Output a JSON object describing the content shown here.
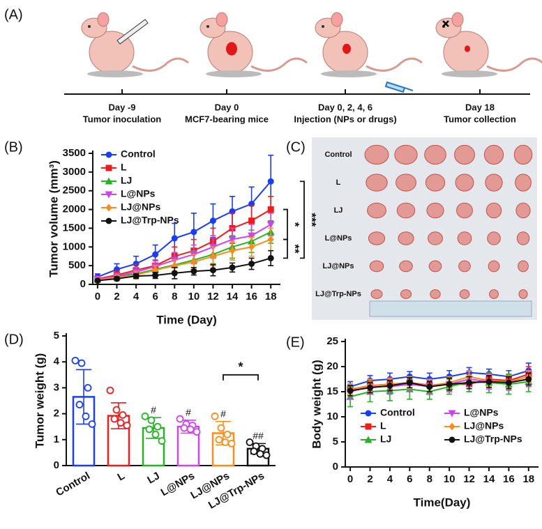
{
  "panels": [
    "(A)",
    "(B)",
    "(C)",
    "(D)",
    "(E)"
  ],
  "timeline": [
    {
      "day": "Day -9",
      "event": "Tumor inoculation"
    },
    {
      "day": "Day 0",
      "event": "MCF7-bearing mice"
    },
    {
      "day": "Day 0, 2, 4, 6",
      "event": "Injection (NPs or drugs)"
    },
    {
      "day": "Day 18",
      "event": "Tumor collection"
    }
  ],
  "photo": {
    "rows": [
      "Control",
      "L",
      "LJ",
      "L@NPs",
      "LJ@NPs",
      "LJ@Trp-NPs"
    ]
  },
  "chart_data": [
    {
      "type": "line",
      "x_label": "Time (Day)",
      "y_label": "Tumor volume (mm³)",
      "x": [
        0,
        2,
        4,
        6,
        8,
        10,
        12,
        14,
        16,
        18
      ],
      "xlim": [
        -0.5,
        19
      ],
      "xticks": [
        0,
        2,
        4,
        6,
        8,
        10,
        12,
        14,
        16,
        18
      ],
      "ylim": [
        0,
        3500
      ],
      "yticks": [
        0,
        500,
        1000,
        1500,
        2000,
        2500,
        3000,
        3500
      ],
      "legend": "upper left",
      "legend_columns": 1,
      "series": [
        {
          "name": "Control",
          "color": "#1a3cff",
          "marker": "circle",
          "values": [
            200,
            400,
            550,
            800,
            1230,
            1400,
            1700,
            1950,
            2150,
            2750
          ],
          "errors": [
            80,
            150,
            200,
            250,
            400,
            500,
            450,
            400,
            450,
            700
          ]
        },
        {
          "name": "L",
          "color": "#ee1c1c",
          "marker": "square",
          "values": [
            150,
            250,
            380,
            500,
            750,
            900,
            1150,
            1500,
            1700,
            2000
          ],
          "errors": [
            50,
            100,
            150,
            150,
            250,
            300,
            350,
            400,
            400,
            350
          ]
        },
        {
          "name": "LJ",
          "color": "#22b422",
          "marker": "triangle-up",
          "values": [
            130,
            200,
            280,
            400,
            520,
            650,
            800,
            1000,
            1150,
            1400
          ],
          "errors": [
            40,
            80,
            100,
            120,
            200,
            250,
            250,
            300,
            300,
            300
          ]
        },
        {
          "name": "L@NPs",
          "color": "#cc44ee",
          "marker": "triangle-down",
          "values": [
            140,
            220,
            330,
            480,
            650,
            800,
            1000,
            1200,
            1300,
            1600
          ],
          "errors": [
            40,
            80,
            120,
            150,
            200,
            250,
            300,
            300,
            300,
            300
          ]
        },
        {
          "name": "LJ@NPs",
          "color": "#ff8c1a",
          "marker": "diamond",
          "values": [
            120,
            180,
            250,
            380,
            500,
            600,
            750,
            900,
            1000,
            1200
          ],
          "errors": [
            40,
            60,
            100,
            120,
            150,
            200,
            250,
            250,
            250,
            300
          ]
        },
        {
          "name": "LJ@Trp-NPs",
          "color": "#111111",
          "marker": "circle",
          "values": [
            100,
            150,
            220,
            240,
            300,
            350,
            380,
            450,
            550,
            700
          ],
          "errors": [
            30,
            50,
            60,
            80,
            150,
            100,
            150,
            120,
            150,
            200
          ]
        }
      ],
      "annotations": [
        "*",
        "**",
        "***"
      ]
    },
    {
      "type": "bar",
      "y_label": "Tumor weight (g)",
      "categories": [
        "Control",
        "L",
        "LJ",
        "L@NPs",
        "LJ@NPs",
        "LJ@Trp-NPs"
      ],
      "values": [
        2.65,
        1.92,
        1.45,
        1.5,
        1.25,
        0.65
      ],
      "errors": [
        1.05,
        0.5,
        0.4,
        0.25,
        0.45,
        0.2
      ],
      "colors": [
        "#1a3cff",
        "#ee1c1c",
        "#22b422",
        "#cc44ee",
        "#ff8c1a",
        "#111111"
      ],
      "points": [
        [
          4.05,
          3.95,
          3.0,
          2.35,
          1.9,
          1.6
        ],
        [
          2.9,
          2.15,
          1.95,
          1.8,
          1.65,
          1.55
        ],
        [
          1.9,
          1.75,
          1.5,
          1.4,
          1.2,
          0.95
        ],
        [
          1.8,
          1.6,
          1.55,
          1.45,
          1.4,
          1.3
        ],
        [
          1.9,
          1.45,
          1.2,
          1.0,
          0.9,
          0.85
        ],
        [
          0.9,
          0.75,
          0.65,
          0.55,
          0.45,
          0.4
        ]
      ],
      "ylim": [
        0,
        5
      ],
      "yticks": [
        0,
        1,
        2,
        3,
        4,
        5
      ],
      "annotations": [
        "#",
        "#",
        "#",
        "##",
        "*"
      ]
    },
    {
      "type": "line",
      "x_label": "Time(Day)",
      "y_label": "Body weight (g)",
      "x": [
        0,
        2,
        4,
        6,
        8,
        10,
        12,
        14,
        16,
        18
      ],
      "xlim": [
        -0.5,
        19
      ],
      "xticks": [
        0,
        2,
        4,
        6,
        8,
        10,
        12,
        14,
        16,
        18
      ],
      "ylim": [
        0,
        25
      ],
      "yticks": [
        0,
        5,
        10,
        15,
        20,
        25
      ],
      "legend": "lower center",
      "legend_columns": 2,
      "series": [
        {
          "name": "Control",
          "color": "#1a3cff",
          "marker": "circle",
          "values": [
            16,
            17.2,
            17.5,
            18,
            17.5,
            18,
            18.8,
            18.5,
            18,
            19.2
          ],
          "errors": [
            1,
            1,
            1.2,
            1,
            1.2,
            1.2,
            1,
            1,
            1.2,
            1.5
          ]
        },
        {
          "name": "L",
          "color": "#ee1c1c",
          "marker": "square",
          "values": [
            15.5,
            16.2,
            16.5,
            16.8,
            16.3,
            16.5,
            16.5,
            17.5,
            17.2,
            18.5
          ],
          "errors": [
            1,
            1,
            1,
            1.2,
            1.2,
            1.5,
            1.5,
            1.2,
            1.2,
            1.5
          ]
        },
        {
          "name": "LJ",
          "color": "#22b422",
          "marker": "triangle-up",
          "values": [
            14,
            15,
            15.2,
            15.5,
            15,
            16,
            17,
            16.8,
            16.5,
            17
          ],
          "errors": [
            2,
            2,
            2,
            2,
            1.5,
            1.5,
            2,
            2,
            2,
            2
          ]
        },
        {
          "name": "L@NPs",
          "color": "#cc44ee",
          "marker": "triangle-down",
          "values": [
            15,
            16,
            16,
            16.5,
            16,
            16.5,
            17.5,
            17,
            16.8,
            17.5
          ],
          "errors": [
            1.5,
            1.5,
            1.5,
            1.5,
            1.5,
            1.5,
            1.5,
            1.5,
            1.5,
            1.5
          ]
        },
        {
          "name": "LJ@NPs",
          "color": "#ff8c1a",
          "marker": "diamond",
          "values": [
            15.5,
            16.2,
            16.5,
            16.8,
            16.2,
            16.8,
            18,
            17.2,
            17,
            18
          ],
          "errors": [
            1,
            1.2,
            1.2,
            1.2,
            1.2,
            1.2,
            1.2,
            1.2,
            1.2,
            1.2
          ]
        },
        {
          "name": "LJ@Trp-NPs",
          "color": "#111111",
          "marker": "circle",
          "values": [
            15.2,
            15.8,
            16.2,
            16.8,
            16,
            16.5,
            16.8,
            17,
            16.8,
            17.5
          ],
          "errors": [
            1,
            1,
            1,
            1,
            1,
            1.2,
            1.2,
            1.2,
            1.2,
            1.2
          ]
        }
      ]
    }
  ]
}
